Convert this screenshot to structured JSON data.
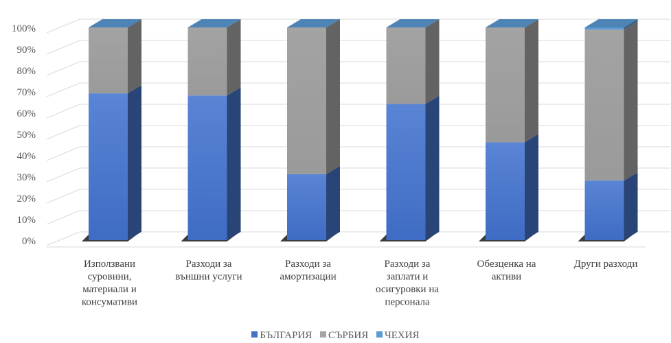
{
  "chart_data": {
    "type": "bar",
    "stacked": true,
    "percent": true,
    "three_d": true,
    "categories": [
      [
        "Използвани",
        "суровини,",
        "материали и",
        "консумативи"
      ],
      [
        "Разходи за",
        "външни услуги"
      ],
      [
        "Разходи за",
        "амортизации"
      ],
      [
        "Разходи за",
        "заплати и",
        "осигуровки на",
        "персонала"
      ],
      [
        "Обезценка на",
        "активи"
      ],
      [
        "Други разходи"
      ]
    ],
    "series": [
      {
        "name": "БЪЛГАРИЯ",
        "color": "#4472C4",
        "values": [
          69,
          68,
          31,
          64,
          46,
          28
        ]
      },
      {
        "name": "СЪРБИЯ",
        "color": "#A5A5A5",
        "values": [
          31,
          32,
          69,
          36,
          54,
          71
        ]
      },
      {
        "name": "ЧЕХИЯ",
        "color": "#5B9BD5",
        "values": [
          0,
          0,
          0,
          0,
          0,
          1
        ]
      }
    ],
    "y_ticks": [
      "0%",
      "10%",
      "20%",
      "30%",
      "40%",
      "50%",
      "60%",
      "70%",
      "80%",
      "90%",
      "100%"
    ],
    "ylim": [
      0,
      100
    ],
    "grid": true,
    "legend_position": "bottom"
  }
}
